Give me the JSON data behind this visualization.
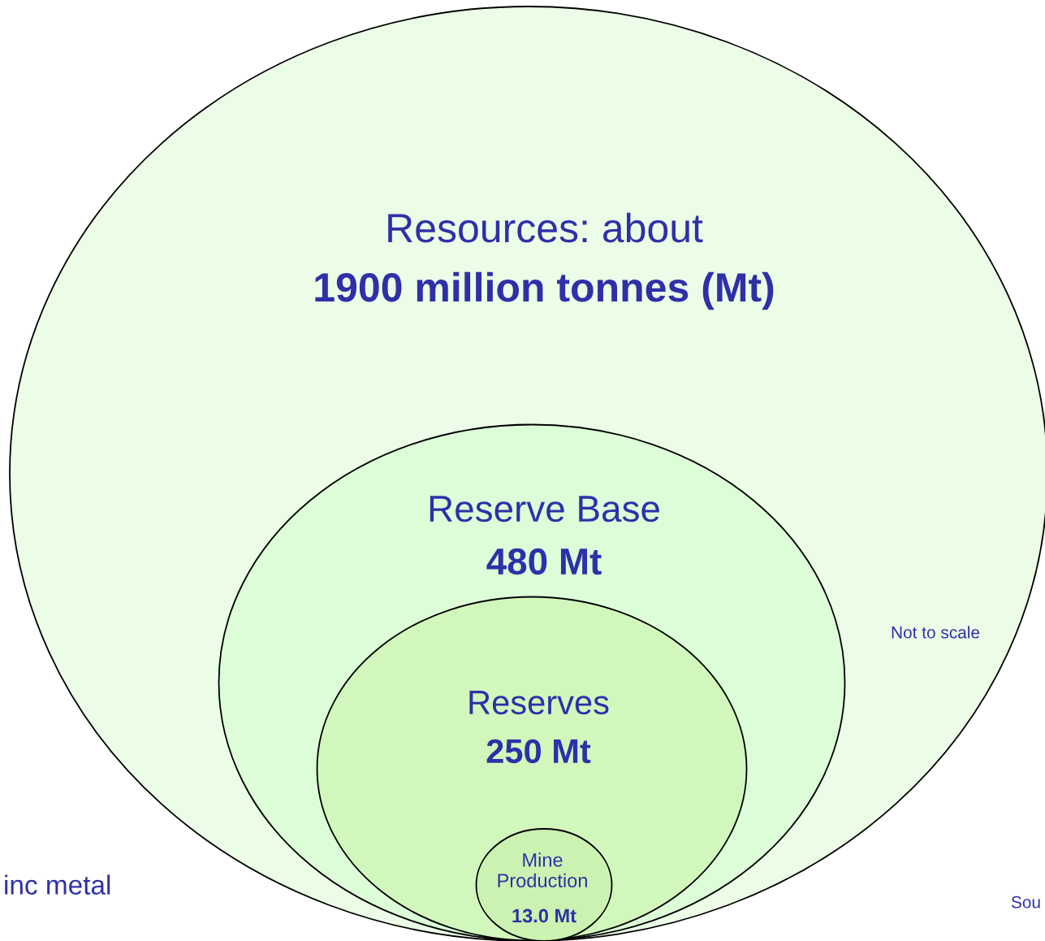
{
  "chart_data": {
    "type": "other",
    "categories": [
      "Resources: about",
      "Reserve Base",
      "Reserves",
      "Mine\nProduction"
    ],
    "values": [
      1900,
      480,
      250,
      13.0
    ],
    "value_labels": [
      "1900 million tonnes (Mt)",
      "480 Mt",
      "250 Mt",
      "13.0 Mt"
    ],
    "colors": [
      "#ebfde6",
      "#dcfdd8",
      "#d2f7bc",
      "#cbf2b0"
    ],
    "annotations": [
      "Not to scale",
      "inc metal",
      "Sou"
    ]
  }
}
